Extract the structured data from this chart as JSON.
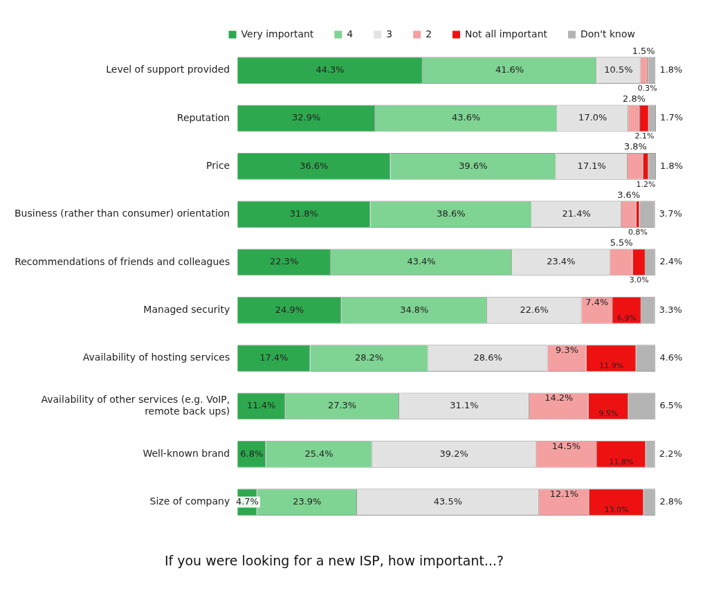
{
  "chart_data": {
    "type": "bar",
    "orientation": "horizontal",
    "stacked": true,
    "title": "If you were looking for a new ISP, how important...?",
    "legend": "top",
    "tick_labels": "y",
    "categories": [
      "Level of support provided",
      "Reputation",
      "Price",
      "Business (rather than consumer) orientation",
      "Recommendations of friends and colleagues",
      "Managed security",
      "Availability of hosting services",
      "Availability of other services (e.g. VoIP, remote back ups)",
      "Well-known brand",
      "Size of company"
    ],
    "series": [
      {
        "name": "Very important",
        "color": "#2ea84e",
        "values": [
          44.3,
          32.9,
          36.6,
          31.8,
          22.3,
          24.9,
          17.4,
          11.4,
          6.8,
          4.7
        ],
        "value_labels": [
          "44.3%",
          "32.9%",
          "36.6%",
          "31.8%",
          "22.3%",
          "24.9%",
          "17.4%",
          "11.4%",
          "6.8%",
          "4.7%"
        ]
      },
      {
        "name": "4",
        "color": "#7fd393",
        "values": [
          41.6,
          43.6,
          39.6,
          38.6,
          43.4,
          34.8,
          28.2,
          27.3,
          25.4,
          23.9
        ],
        "value_labels": [
          "41.6%",
          "43.6%",
          "39.6%",
          "38.6%",
          "43.4%",
          "34.8%",
          "28.2%",
          "27.3%",
          "25.4%",
          "23.9%"
        ]
      },
      {
        "name": "3",
        "color": "#e2e2e2",
        "values": [
          10.5,
          17.0,
          17.1,
          21.4,
          23.4,
          22.6,
          28.6,
          31.1,
          39.2,
          43.5
        ],
        "value_labels": [
          "10.5%",
          "17.0%",
          "17.1%",
          "21.4%",
          "23.4%",
          "22.6%",
          "28.6%",
          "31.1%",
          "39.2%",
          "43.5%"
        ]
      },
      {
        "name": "2",
        "color": "#f4a0a0",
        "values": [
          1.5,
          2.8,
          3.8,
          3.6,
          5.5,
          7.4,
          9.3,
          14.2,
          14.5,
          12.1
        ],
        "value_labels": [
          "1.5%",
          "2.8%",
          "3.8%",
          "3.6%",
          "5.5%",
          "7.4%",
          "9.3%",
          "14.2%",
          "14.5%",
          "12.1%"
        ]
      },
      {
        "name": "Not all important",
        "color": "#ee1111",
        "values": [
          0.3,
          2.1,
          1.2,
          0.8,
          3.0,
          6.9,
          11.9,
          9.5,
          11.8,
          13.0
        ],
        "value_labels": [
          "0.3%",
          "2.1%",
          "1.2%",
          "0.8%",
          "3.0%",
          "6.9%",
          "11.9%",
          "9.5%",
          "11.8%",
          "13.0%"
        ]
      },
      {
        "name": "Don't know",
        "color": "#b4b4b4",
        "values": [
          1.8,
          1.7,
          1.8,
          3.7,
          2.4,
          3.3,
          4.6,
          6.5,
          2.2,
          2.8
        ],
        "value_labels": [
          "1.8%",
          "1.7%",
          "1.8%",
          "3.7%",
          "2.4%",
          "3.3%",
          "4.6%",
          "6.5%",
          "2.2%",
          "2.8%"
        ]
      }
    ]
  }
}
